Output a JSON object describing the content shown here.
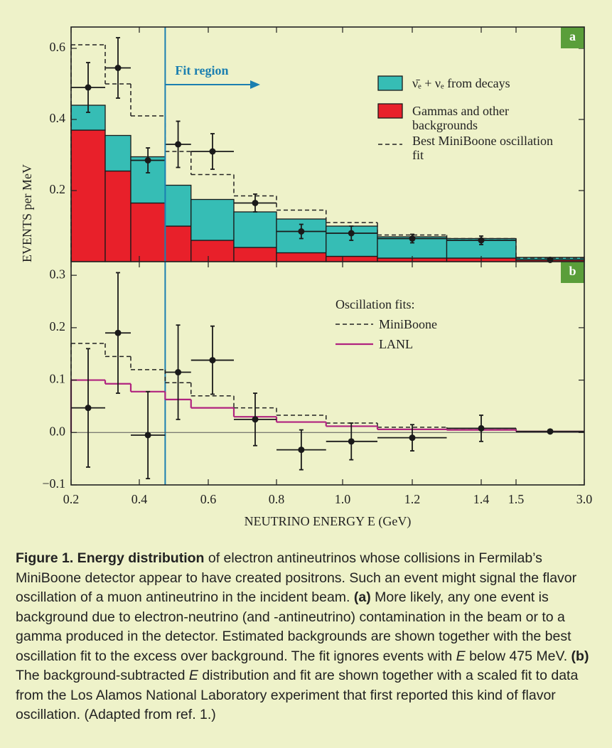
{
  "chart_data": [
    {
      "type": "histogram",
      "panel_label": "a",
      "ylabel": "EVENTS per MeV",
      "annotation": {
        "text": "Fit region",
        "x": 0.475
      },
      "bins": [
        0.2,
        0.3,
        0.375,
        0.475,
        0.55,
        0.675,
        0.8,
        0.95,
        1.1,
        1.3,
        1.5,
        3
      ],
      "xlim": [
        0.2,
        3
      ],
      "xticks": [
        0.2,
        0.4,
        0.6,
        0.8,
        1,
        1.2,
        1.4,
        1.5,
        3
      ],
      "ylim": [
        0,
        0.66
      ],
      "yticks": [
        0.2,
        0.4,
        0.6
      ],
      "series": [
        {
          "name": "ν̄ₑ + νₑ from decays",
          "color": "#36bdb5",
          "style": "filled",
          "values": [
            0.07,
            0.1,
            0.13,
            0.115,
            0.115,
            0.1,
            0.095,
            0.085,
            0.06,
            0.055,
            0.007
          ]
        },
        {
          "name": "Gammas and other backgrounds",
          "color": "#e8202a",
          "style": "filled",
          "values": [
            0.37,
            0.255,
            0.165,
            0.1,
            0.06,
            0.04,
            0.025,
            0.015,
            0.01,
            0.01,
            0.005
          ]
        },
        {
          "name": "Best MiniBoone oscillation fit",
          "color": "#222222",
          "style": "dashed",
          "values": [
            0.61,
            0.5,
            0.41,
            0.31,
            0.245,
            0.185,
            0.145,
            0.11,
            0.075,
            0.065,
            0.01
          ]
        }
      ],
      "points": {
        "x": [
          0.25,
          0.3375,
          0.425,
          0.5125,
          0.6125,
          0.7375,
          0.875,
          1.025,
          1.2,
          1.4,
          2.25
        ],
        "values": [
          0.49,
          0.545,
          0.285,
          0.33,
          0.31,
          0.165,
          0.085,
          0.08,
          0.065,
          0.06,
          0.005
        ],
        "errors": [
          0.07,
          0.085,
          0.035,
          0.065,
          0.05,
          0.025,
          0.02,
          0.02,
          0.012,
          0.012,
          0.003
        ]
      }
    },
    {
      "type": "histogram",
      "panel_label": "b",
      "xlabel": "NEUTRINO ENERGY E (GeV)",
      "legend_title": "Oscillation fits:",
      "bins": [
        0.2,
        0.3,
        0.375,
        0.475,
        0.55,
        0.675,
        0.8,
        0.95,
        1.1,
        1.3,
        1.5,
        3
      ],
      "xlim": [
        0.2,
        3
      ],
      "xticks": [
        0.2,
        0.4,
        0.6,
        0.8,
        {
          "value": 1,
          "label": "1.0"
        },
        1.2,
        1.4,
        1.5,
        {
          "value": 3,
          "label": "3.0"
        }
      ],
      "ylim": [
        -0.1,
        0.326
      ],
      "yticks": [
        {
          "value": -0.1,
          "label": "−0.1"
        },
        {
          "value": 0,
          "label": "0.0"
        },
        0.1,
        0.2,
        0.3
      ],
      "zero_line": true,
      "series": [
        {
          "name": "MiniBoone",
          "color": "#222222",
          "style": "dashed",
          "values": [
            0.17,
            0.145,
            0.12,
            0.095,
            0.07,
            0.047,
            0.033,
            0.018,
            0.01,
            0.008,
            0.002
          ]
        },
        {
          "name": "LANL",
          "color": "#b0237f",
          "style": "line",
          "values": [
            0.1,
            0.093,
            0.078,
            0.063,
            0.047,
            0.03,
            0.02,
            0.012,
            0.006,
            0.005,
            0.002
          ]
        }
      ],
      "points": {
        "x": [
          0.25,
          0.3375,
          0.425,
          0.5125,
          0.6125,
          0.7375,
          0.875,
          1.025,
          1.2,
          1.4,
          2.25
        ],
        "values": [
          0.047,
          0.19,
          -0.005,
          0.115,
          0.138,
          0.025,
          -0.033,
          -0.017,
          -0.01,
          0.008,
          0.002
        ],
        "errors": [
          0.113,
          0.115,
          0.083,
          0.09,
          0.065,
          0.05,
          0.038,
          0.035,
          0.025,
          0.025,
          0.003
        ]
      }
    }
  ],
  "caption": [
    {
      "text": "Figure 1. Energy distribution",
      "style": "bold"
    },
    {
      "text": " of electron antineutrinos whose collisions in Fermilab’s MiniBoone detector appear to have created positrons. Such an event might signal the flavor oscillation of a muon antineutrino in the incident beam. ",
      "style": "normal"
    },
    {
      "text": "(a)",
      "style": "bold"
    },
    {
      "text": " More likely, any one event is background due to electron-neutrino (and -antineutrino) contamination in the beam or to a gamma produced in the detector. Estimated backgrounds are shown together with the best oscillation fit to the excess over background. The fit ignores events with ",
      "style": "normal"
    },
    {
      "text": "E",
      "style": "italic"
    },
    {
      "text": " below 475 MeV. ",
      "style": "normal"
    },
    {
      "text": "(b)",
      "style": "bold"
    },
    {
      "text": " The background-subtracted ",
      "style": "normal"
    },
    {
      "text": "E",
      "style": "italic"
    },
    {
      "text": " distribution and fit are shown together with a scaled fit to data from the Los Alamos National Laboratory experiment that first reported this kind of flavor oscillation. (Adapted from ref. 1.)",
      "style": "normal"
    }
  ]
}
